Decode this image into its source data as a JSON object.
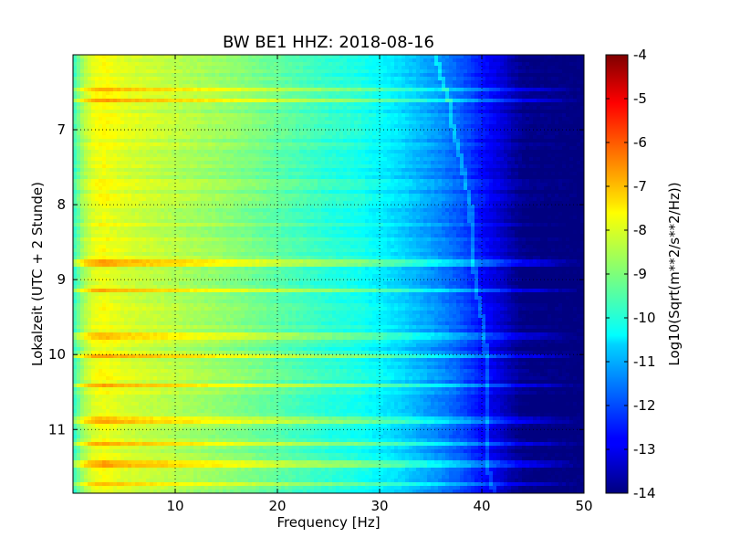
{
  "chart_data": {
    "type": "heatmap",
    "title": "BW BE1 HHZ: 2018-08-16",
    "xlabel": "Frequency [Hz]",
    "ylabel": "Lokalzeit (UTC + 2 Stunde)",
    "xlim": [
      0,
      50
    ],
    "ylim": [
      11.85,
      6.0
    ],
    "x_ticks": [
      10,
      20,
      30,
      40,
      50
    ],
    "y_ticks": [
      7,
      8,
      9,
      10,
      11
    ],
    "grid": true,
    "colormap": "jet",
    "colorbar": {
      "label": "Log10(Sqrt(m**2/s**2/Hz))",
      "range": [
        -14,
        -4
      ],
      "ticks": [
        -4,
        -5,
        -6,
        -7,
        -8,
        -9,
        -10,
        -11,
        -12,
        -13,
        -14
      ]
    },
    "spectrum_profile": {
      "frequency_hz": [
        0,
        1,
        2,
        3,
        5,
        8,
        12,
        16,
        20,
        25,
        28,
        30,
        32,
        34,
        36,
        38,
        40,
        42,
        43,
        44,
        45,
        50
      ],
      "level": [
        -9.8,
        -8.6,
        -8.0,
        -7.8,
        -8.1,
        -8.3,
        -8.6,
        -8.9,
        -9.3,
        -9.8,
        -10.0,
        -10.3,
        -10.6,
        -11.0,
        -11.4,
        -11.9,
        -12.6,
        -13.2,
        -13.6,
        -13.9,
        -14.0,
        -14.0
      ]
    },
    "bright_bands_time": [
      6.47,
      6.6,
      8.78,
      9.15,
      9.75,
      10.02,
      10.4,
      10.88,
      11.2,
      11.45,
      11.72
    ],
    "tone_line": {
      "time": [
        6.0,
        6.3,
        6.6,
        7.0,
        7.4,
        7.7,
        8.0,
        8.4,
        8.8,
        9.2,
        9.6,
        10.0,
        10.4,
        10.8,
        11.2,
        11.5,
        11.85
      ],
      "frequency_hz": [
        35.5,
        36.0,
        36.8,
        37.2,
        38.0,
        38.4,
        38.9,
        39.0,
        39.2,
        39.6,
        40.2,
        40.4,
        40.6,
        40.6,
        40.4,
        40.6,
        41.2
      ]
    }
  }
}
